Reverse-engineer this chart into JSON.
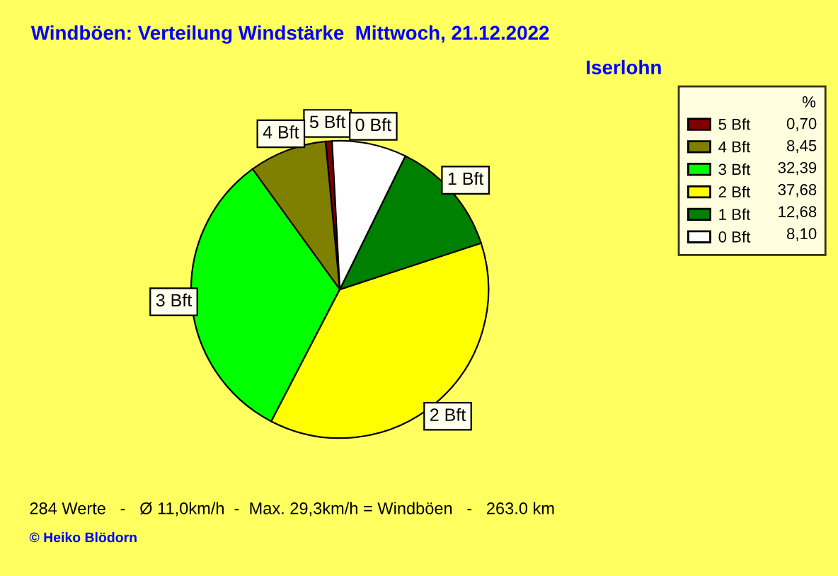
{
  "chart_data": {
    "type": "pie",
    "title": "Windböen: Verteilung Windstärke  Mittwoch, 21.12.2022",
    "subtitle": "Iserlohn",
    "categories": [
      "5 Bft",
      "4 Bft",
      "3 Bft",
      "2 Bft",
      "1 Bft",
      "0 Bft"
    ],
    "values": [
      0.7,
      8.45,
      32.39,
      37.68,
      12.68,
      8.1
    ],
    "value_labels": [
      "0,70",
      "8,45",
      "32,39",
      "37,68",
      "12,68",
      "8,10"
    ],
    "colors": [
      "#800000",
      "#808000",
      "#00ff00",
      "#ffff00",
      "#008000",
      "#ffffff"
    ],
    "legend": "right",
    "legend_title": "%",
    "annotations": [
      "284 Werte   -   Ø 11,0km/h  -  Max. 29,3km/h = Windböen   -   263.0 km",
      "© Heiko Blödorn"
    ]
  }
}
